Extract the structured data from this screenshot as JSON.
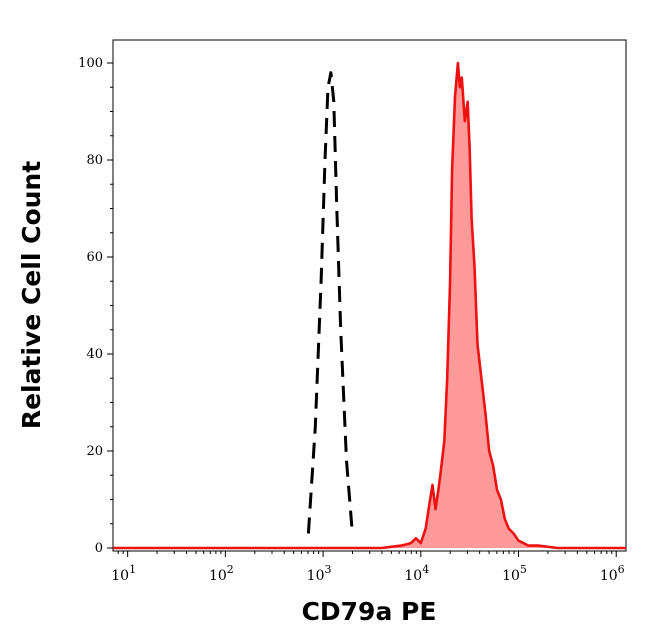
{
  "chart_data": {
    "type": "area",
    "title": "",
    "xlabel": "CD79a PE",
    "ylabel": "Relative Cell Count",
    "x_scale": "log",
    "xlim": [
      0.7,
      1.4
    ],
    "xlim_exponents": [
      0.85,
      6.1
    ],
    "ylim": [
      0,
      100
    ],
    "x_ticks": [
      {
        "base": "10",
        "exp": "1"
      },
      {
        "base": "10",
        "exp": "2"
      },
      {
        "base": "10",
        "exp": "3"
      },
      {
        "base": "10",
        "exp": "4"
      },
      {
        "base": "10",
        "exp": "5"
      },
      {
        "base": "10",
        "exp": "6"
      }
    ],
    "y_ticks": [
      "0",
      "20",
      "40",
      "60",
      "80",
      "100"
    ],
    "grid": false,
    "legend": "none",
    "series": [
      {
        "style": "dashed",
        "color": "#000000",
        "fill": "none",
        "log10_x": [
          2.85,
          2.92,
          2.98,
          3.02,
          3.05,
          3.08,
          3.11,
          3.14,
          3.18,
          3.24,
          3.3
        ],
        "y": [
          3,
          25,
          55,
          80,
          95,
          98,
          92,
          70,
          45,
          18,
          3
        ]
      },
      {
        "style": "solid",
        "color": "#ee1111",
        "fill": "#ff9a9a",
        "log10_x": [
          0.85,
          1.5,
          2.0,
          2.5,
          2.8,
          3.2,
          3.6,
          3.8,
          3.9,
          3.95,
          4.0,
          4.05,
          4.08,
          4.12,
          4.15,
          4.18,
          4.2,
          4.24,
          4.27,
          4.3,
          4.32,
          4.35,
          4.38,
          4.4,
          4.42,
          4.45,
          4.48,
          4.5,
          4.52,
          4.55,
          4.58,
          4.62,
          4.66,
          4.7,
          4.74,
          4.78,
          4.82,
          4.86,
          4.9,
          4.95,
          5.0,
          5.05,
          5.1,
          5.2,
          5.4,
          5.7,
          6.0,
          6.1
        ],
        "y": [
          0,
          0,
          0,
          0,
          0,
          0,
          0,
          0.5,
          1,
          2,
          1,
          4,
          8,
          13,
          8,
          12,
          15,
          22,
          35,
          55,
          78,
          93,
          100,
          95,
          97,
          88,
          92,
          82,
          68,
          58,
          42,
          35,
          28,
          20,
          17,
          12,
          10,
          6,
          4,
          3,
          1.5,
          1,
          0.5,
          0.5,
          0,
          0,
          0,
          0
        ]
      }
    ]
  }
}
